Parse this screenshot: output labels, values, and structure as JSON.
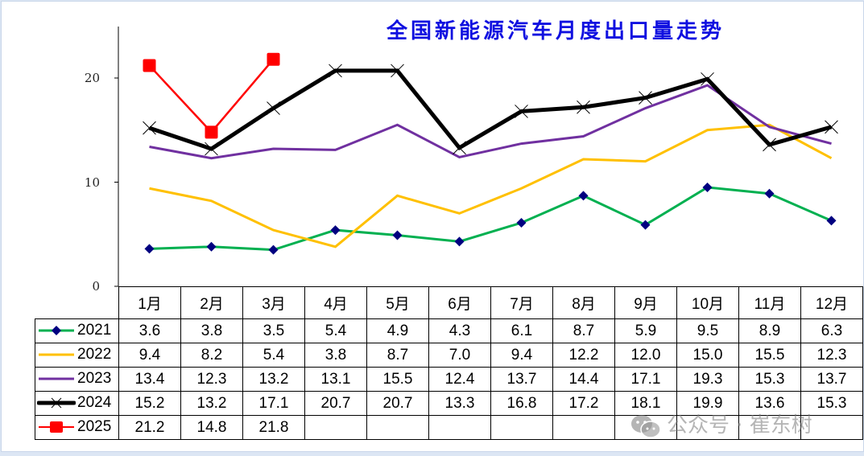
{
  "title": "全国新能源汽车月度出口量走势",
  "y_axis": {
    "ticks": [
      "0",
      "10",
      "20"
    ]
  },
  "columns": [
    "1月",
    "2月",
    "3月",
    "4月",
    "5月",
    "6月",
    "7月",
    "8月",
    "9月",
    "10月",
    "11月",
    "12月"
  ],
  "rows": [
    {
      "label": "2021",
      "cells": [
        "3.6",
        "3.8",
        "3.5",
        "5.4",
        "4.9",
        "4.3",
        "6.1",
        "8.7",
        "5.9",
        "9.5",
        "8.9",
        "6.3"
      ]
    },
    {
      "label": "2022",
      "cells": [
        "9.4",
        "8.2",
        "5.4",
        "3.8",
        "8.7",
        "7.0",
        "9.4",
        "12.2",
        "12.0",
        "15.0",
        "15.5",
        "12.3"
      ]
    },
    {
      "label": "2023",
      "cells": [
        "13.4",
        "12.3",
        "13.2",
        "13.1",
        "15.5",
        "12.4",
        "13.7",
        "14.4",
        "17.1",
        "19.3",
        "15.3",
        "13.7"
      ]
    },
    {
      "label": "2024",
      "cells": [
        "15.2",
        "13.2",
        "17.1",
        "20.7",
        "20.7",
        "13.3",
        "16.8",
        "17.2",
        "18.1",
        "19.9",
        "13.6",
        "15.3"
      ]
    },
    {
      "label": "2025",
      "cells": [
        "21.2",
        "14.8",
        "21.8",
        "",
        "",
        "",
        "",
        "",
        "",
        "",
        "",
        ""
      ]
    }
  ],
  "watermark": "公众号 · 崔东树",
  "chart_data": {
    "type": "line",
    "title": "全国新能源汽车月度出口量走势",
    "xlabel": "",
    "ylabel": "",
    "categories": [
      "1月",
      "2月",
      "3月",
      "4月",
      "5月",
      "6月",
      "7月",
      "8月",
      "9月",
      "10月",
      "11月",
      "12月"
    ],
    "ylim": [
      0,
      24
    ],
    "yticks": [
      0,
      10,
      20
    ],
    "grid": false,
    "legend_position": "data-table",
    "series": [
      {
        "name": "2021",
        "color": "#00b050",
        "marker": "diamond",
        "marker_color": "#000080",
        "values": [
          3.6,
          3.8,
          3.5,
          5.4,
          4.9,
          4.3,
          6.1,
          8.7,
          5.9,
          9.5,
          8.9,
          6.3
        ]
      },
      {
        "name": "2022",
        "color": "#ffc000",
        "marker": "none",
        "values": [
          9.4,
          8.2,
          5.4,
          3.8,
          8.7,
          7.0,
          9.4,
          12.2,
          12.0,
          15.0,
          15.5,
          12.3
        ]
      },
      {
        "name": "2023",
        "color": "#7030a0",
        "marker": "none",
        "values": [
          13.4,
          12.3,
          13.2,
          13.1,
          15.5,
          12.4,
          13.7,
          14.4,
          17.1,
          19.3,
          15.3,
          13.7
        ]
      },
      {
        "name": "2024",
        "color": "#000000",
        "marker": "x",
        "values": [
          15.2,
          13.2,
          17.1,
          20.7,
          20.7,
          13.3,
          16.8,
          17.2,
          18.1,
          19.9,
          13.6,
          15.3
        ]
      },
      {
        "name": "2025",
        "color": "#ff0000",
        "marker": "square",
        "values": [
          21.2,
          14.8,
          21.8
        ]
      }
    ]
  }
}
